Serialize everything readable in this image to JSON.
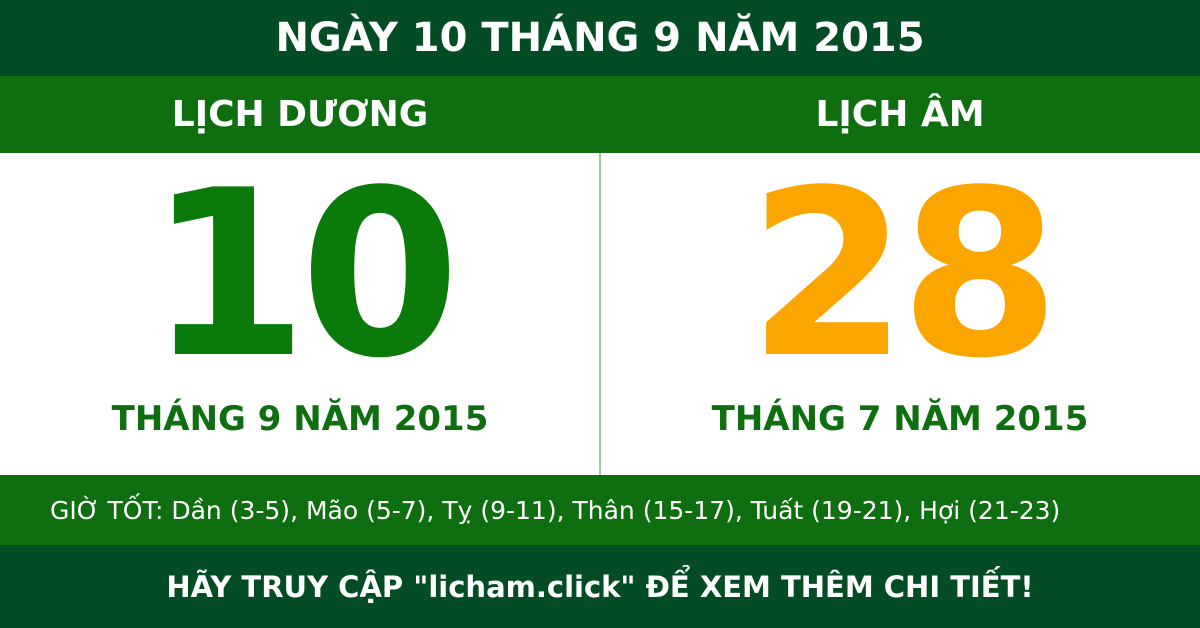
{
  "header": {
    "title": "NGÀY 10 THÁNG 9 NĂM 2015"
  },
  "solar": {
    "label": "LỊCH DƯƠNG",
    "day": "10",
    "month_year": "THÁNG 9 NĂM 2015"
  },
  "lunar": {
    "label": "LỊCH ÂM",
    "day": "28",
    "month_year": "THÁNG 7 NĂM 2015"
  },
  "good_hours": "GIỜ TỐT: Dần (3-5), Mão (5-7), Tỵ (9-11), Thân (15-17), Tuất (19-21), Hợi (21-23)",
  "footer": "HÃY TRUY CẬP \"licham.click\" ĐỂ XEM THÊM CHI TIẾT!"
}
